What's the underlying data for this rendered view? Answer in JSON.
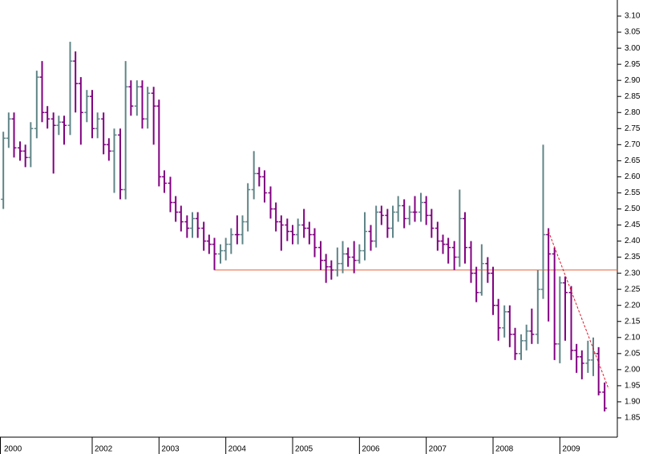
{
  "chart_data": {
    "type": "ohlc",
    "x": [
      2000.67,
      2000.75,
      2000.83,
      2000.92,
      2001.0,
      2001.08,
      2001.17,
      2001.25,
      2001.33,
      2001.42,
      2001.5,
      2001.58,
      2001.67,
      2001.75,
      2001.83,
      2001.92,
      2002.0,
      2002.08,
      2002.17,
      2002.25,
      2002.33,
      2002.42,
      2002.5,
      2002.58,
      2002.67,
      2002.75,
      2002.83,
      2002.92,
      2003.0,
      2003.08,
      2003.17,
      2003.25,
      2003.33,
      2003.42,
      2003.5,
      2003.58,
      2003.67,
      2003.75,
      2003.83,
      2003.92,
      2004.0,
      2004.08,
      2004.17,
      2004.25,
      2004.33,
      2004.42,
      2004.5,
      2004.58,
      2004.67,
      2004.75,
      2004.83,
      2004.92,
      2005.0,
      2005.08,
      2005.17,
      2005.25,
      2005.33,
      2005.42,
      2005.5,
      2005.58,
      2005.67,
      2005.75,
      2005.83,
      2005.92,
      2006.0,
      2006.08,
      2006.17,
      2006.25,
      2006.33,
      2006.42,
      2006.5,
      2006.58,
      2006.67,
      2006.75,
      2006.83,
      2006.92,
      2007.0,
      2007.08,
      2007.17,
      2007.25,
      2007.33,
      2007.42,
      2007.5,
      2007.58,
      2007.67,
      2007.75,
      2007.83,
      2007.92,
      2008.0,
      2008.08,
      2008.17,
      2008.25,
      2008.33,
      2008.42,
      2008.5,
      2008.58,
      2008.67,
      2008.75,
      2008.83,
      2008.92,
      2009.0,
      2009.08,
      2009.17,
      2009.25,
      2009.33,
      2009.42,
      2009.5,
      2009.58,
      2009.67
    ],
    "open": [
      2.53,
      2.72,
      2.78,
      2.69,
      2.68,
      2.66,
      2.75,
      2.91,
      2.8,
      2.78,
      2.76,
      2.77,
      2.76,
      2.96,
      2.89,
      2.8,
      2.85,
      2.75,
      2.78,
      2.7,
      2.68,
      2.73,
      2.56,
      2.88,
      2.82,
      2.88,
      2.78,
      2.86,
      2.82,
      2.6,
      2.58,
      2.52,
      2.49,
      2.46,
      2.44,
      2.47,
      2.44,
      2.4,
      2.39,
      2.36,
      2.37,
      2.39,
      2.42,
      2.42,
      2.46,
      2.56,
      2.61,
      2.6,
      2.55,
      2.5,
      2.46,
      2.45,
      2.43,
      2.42,
      2.45,
      2.44,
      2.42,
      2.38,
      2.34,
      2.32,
      2.31,
      2.33,
      2.36,
      2.35,
      2.34,
      2.37,
      2.43,
      2.4,
      2.49,
      2.48,
      2.44,
      2.49,
      2.51,
      2.47,
      2.49,
      2.49,
      2.52,
      2.48,
      2.44,
      2.4,
      2.39,
      2.38,
      2.35,
      2.47,
      2.38,
      2.3,
      2.24,
      2.33,
      2.3,
      2.2,
      2.13,
      2.18,
      2.11,
      2.05,
      2.09,
      2.12,
      2.11,
      2.25,
      2.42,
      2.36,
      2.08,
      2.27,
      2.24,
      2.06,
      2.04,
      2.02,
      2.03,
      2.05,
      1.93
    ],
    "high": [
      2.74,
      2.8,
      2.8,
      2.71,
      2.7,
      2.77,
      2.93,
      2.96,
      2.82,
      2.8,
      2.79,
      2.79,
      3.02,
      2.99,
      2.91,
      2.87,
      2.87,
      2.8,
      2.8,
      2.72,
      2.75,
      2.75,
      2.96,
      2.9,
      2.9,
      2.9,
      2.88,
      2.88,
      2.84,
      2.62,
      2.6,
      2.54,
      2.51,
      2.48,
      2.49,
      2.49,
      2.46,
      2.42,
      2.41,
      2.39,
      2.41,
      2.44,
      2.48,
      2.48,
      2.58,
      2.68,
      2.63,
      2.62,
      2.57,
      2.52,
      2.48,
      2.47,
      2.45,
      2.47,
      2.5,
      2.46,
      2.44,
      2.4,
      2.36,
      2.34,
      2.38,
      2.4,
      2.38,
      2.4,
      2.39,
      2.49,
      2.45,
      2.51,
      2.51,
      2.5,
      2.51,
      2.54,
      2.53,
      2.51,
      2.54,
      2.55,
      2.54,
      2.5,
      2.46,
      2.42,
      2.41,
      2.4,
      2.56,
      2.49,
      2.4,
      2.32,
      2.39,
      2.35,
      2.32,
      2.22,
      2.2,
      2.2,
      2.13,
      2.11,
      2.14,
      2.19,
      2.31,
      2.7,
      2.44,
      2.38,
      2.29,
      2.29,
      2.26,
      2.08,
      2.06,
      2.09,
      2.1,
      2.07,
      1.96
    ],
    "low": [
      2.5,
      2.69,
      2.66,
      2.65,
      2.63,
      2.63,
      2.72,
      2.77,
      2.75,
      2.61,
      2.73,
      2.7,
      2.73,
      2.8,
      2.7,
      2.77,
      2.72,
      2.72,
      2.67,
      2.65,
      2.55,
      2.53,
      2.53,
      2.79,
      2.79,
      2.75,
      2.75,
      2.7,
      2.57,
      2.55,
      2.49,
      2.46,
      2.43,
      2.41,
      2.41,
      2.41,
      2.37,
      2.36,
      2.31,
      2.33,
      2.34,
      2.36,
      2.39,
      2.39,
      2.43,
      2.53,
      2.57,
      2.52,
      2.47,
      2.43,
      2.37,
      2.4,
      2.39,
      2.39,
      2.41,
      2.39,
      2.35,
      2.31,
      2.27,
      2.28,
      2.29,
      2.3,
      2.32,
      2.3,
      2.33,
      2.34,
      2.37,
      2.38,
      2.45,
      2.41,
      2.41,
      2.46,
      2.44,
      2.45,
      2.46,
      2.46,
      2.45,
      2.41,
      2.37,
      2.36,
      2.33,
      2.31,
      2.32,
      2.33,
      2.27,
      2.21,
      2.23,
      2.27,
      2.17,
      2.09,
      2.1,
      2.07,
      2.03,
      2.03,
      2.06,
      2.08,
      2.08,
      2.22,
      2.15,
      2.03,
      2.02,
      2.09,
      2.03,
      1.99,
      1.97,
      1.99,
      1.98,
      1.92,
      1.87
    ],
    "close": [
      2.72,
      2.78,
      2.69,
      2.68,
      2.66,
      2.75,
      2.91,
      2.8,
      2.78,
      2.76,
      2.77,
      2.76,
      2.96,
      2.89,
      2.8,
      2.85,
      2.75,
      2.78,
      2.7,
      2.68,
      2.73,
      2.56,
      2.88,
      2.82,
      2.88,
      2.78,
      2.86,
      2.82,
      2.6,
      2.58,
      2.52,
      2.49,
      2.46,
      2.44,
      2.47,
      2.44,
      2.4,
      2.39,
      2.36,
      2.37,
      2.39,
      2.42,
      2.42,
      2.46,
      2.56,
      2.61,
      2.6,
      2.55,
      2.5,
      2.46,
      2.45,
      2.43,
      2.42,
      2.45,
      2.44,
      2.42,
      2.38,
      2.34,
      2.32,
      2.31,
      2.33,
      2.36,
      2.35,
      2.34,
      2.37,
      2.43,
      2.4,
      2.49,
      2.48,
      2.44,
      2.49,
      2.51,
      2.47,
      2.49,
      2.49,
      2.52,
      2.48,
      2.44,
      2.4,
      2.39,
      2.38,
      2.35,
      2.47,
      2.38,
      2.3,
      2.24,
      2.33,
      2.3,
      2.2,
      2.13,
      2.18,
      2.11,
      2.05,
      2.09,
      2.12,
      2.11,
      2.25,
      2.42,
      2.36,
      2.08,
      2.27,
      2.24,
      2.06,
      2.04,
      2.02,
      2.03,
      2.05,
      1.93,
      1.88
    ],
    "up_color": "#5f8487",
    "down_color": "#800080",
    "xlim": [
      2000.62,
      2009.86
    ],
    "x_start_label": "2000",
    "xticks": [
      2002,
      2003,
      2004,
      2005,
      2006,
      2007,
      2008,
      2009
    ],
    "ylim": [
      1.79,
      3.15
    ],
    "yticks": [
      {
        "value": 1.85,
        "label": "1.85"
      },
      {
        "value": 1.9,
        "label": "1.90"
      },
      {
        "value": 1.95,
        "label": "1.95"
      },
      {
        "value": 2.0,
        "label": "2.00"
      },
      {
        "value": 2.05,
        "label": "2.05"
      },
      {
        "value": 2.1,
        "label": "2.10"
      },
      {
        "value": 2.15,
        "label": "2.15"
      },
      {
        "value": 2.2,
        "label": "2.20"
      },
      {
        "value": 2.25,
        "label": "2.25"
      },
      {
        "value": 2.3,
        "label": "2.30"
      },
      {
        "value": 2.35,
        "label": "2.35"
      },
      {
        "value": 2.4,
        "label": "2.40"
      },
      {
        "value": 2.45,
        "label": "2.45"
      },
      {
        "value": 2.5,
        "label": "2.50"
      },
      {
        "value": 2.55,
        "label": "2.55"
      },
      {
        "value": 2.6,
        "label": "2.60"
      },
      {
        "value": 2.65,
        "label": "2.65"
      },
      {
        "value": 2.7,
        "label": "2.70"
      },
      {
        "value": 2.75,
        "label": "2.75"
      },
      {
        "value": 2.8,
        "label": "2.80"
      },
      {
        "value": 2.85,
        "label": "2.85"
      },
      {
        "value": 2.9,
        "label": "2.90"
      },
      {
        "value": 2.95,
        "label": "2.95"
      },
      {
        "value": 3.0,
        "label": "3.00"
      },
      {
        "value": 3.05,
        "label": "3.05"
      },
      {
        "value": 3.1,
        "label": "3.10"
      }
    ],
    "support_line": {
      "y": 2.31,
      "x_from": 2003.83,
      "color": "#e8643c"
    },
    "trend_line": {
      "x": [
        2008.83,
        2009.73
      ],
      "y": [
        2.43,
        1.94
      ],
      "color": "#e0182c"
    }
  }
}
